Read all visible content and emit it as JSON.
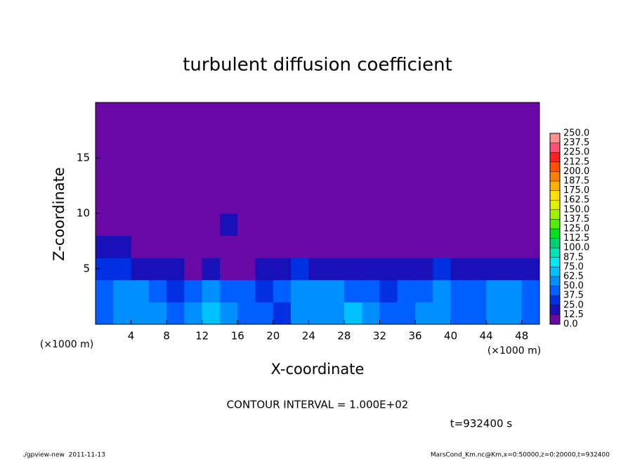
{
  "chart_data": {
    "type": "heatmap",
    "title": "turbulent diffusion coefficient",
    "x_label": "X-coordinate",
    "y_label": "Z-coordinate",
    "x_unit": "(×1000 m)",
    "xlim": [
      0,
      50
    ],
    "xticks": [
      4,
      8,
      12,
      16,
      20,
      24,
      28,
      32,
      36,
      40,
      44,
      48
    ],
    "ylim": [
      0,
      20
    ],
    "yticks": [
      5,
      10,
      15
    ],
    "x_edges": [
      0,
      2,
      4,
      6,
      8,
      10,
      12,
      14,
      16,
      18,
      20,
      22,
      24,
      26,
      28,
      30,
      32,
      34,
      36,
      38,
      40,
      42,
      44,
      46,
      48,
      50
    ],
    "y_edges": [
      0,
      2,
      4,
      6,
      8,
      10,
      12,
      14,
      16,
      18,
      20
    ],
    "field": [
      [
        45,
        55,
        60,
        50,
        40,
        55,
        65,
        50,
        45,
        40,
        35,
        50,
        55,
        60,
        65,
        55,
        45,
        40,
        50,
        55,
        45,
        40,
        50,
        60,
        45
      ],
      [
        40,
        50,
        55,
        45,
        35,
        40,
        50,
        45,
        40,
        30,
        40,
        55,
        60,
        50,
        45,
        40,
        35,
        40,
        45,
        50,
        40,
        45,
        55,
        50,
        40
      ],
      [
        30,
        25,
        20,
        15,
        20,
        10,
        15,
        10,
        12,
        15,
        20,
        25,
        20,
        15,
        20,
        18,
        20,
        15,
        20,
        25,
        20,
        18,
        20,
        15,
        20
      ],
      [
        20,
        15,
        10,
        0,
        0,
        0,
        0,
        0,
        0,
        0,
        0,
        10,
        0,
        0,
        0,
        0,
        0,
        0,
        0,
        0,
        0,
        0,
        0,
        0,
        0
      ],
      [
        0,
        0,
        0,
        0,
        0,
        0,
        0,
        15,
        0,
        0,
        0,
        0,
        0,
        0,
        0,
        0,
        0,
        10,
        0,
        0,
        0,
        0,
        0,
        0,
        0
      ],
      [
        0,
        0,
        0,
        0,
        0,
        0,
        0,
        0,
        0,
        0,
        0,
        0,
        0,
        0,
        0,
        0,
        0,
        0,
        0,
        0,
        0,
        0,
        0,
        0,
        0
      ],
      [
        0,
        0,
        0,
        0,
        0,
        0,
        0,
        0,
        0,
        0,
        0,
        0,
        0,
        0,
        0,
        0,
        0,
        0,
        0,
        0,
        0,
        0,
        0,
        0,
        0
      ],
      [
        0,
        0,
        0,
        0,
        0,
        0,
        0,
        0,
        0,
        0,
        0,
        0,
        0,
        0,
        0,
        0,
        0,
        0,
        0,
        0,
        0,
        0,
        0,
        0,
        0
      ],
      [
        0,
        0,
        0,
        0,
        0,
        0,
        0,
        0,
        0,
        0,
        0,
        0,
        0,
        0,
        0,
        0,
        0,
        0,
        0,
        0,
        0,
        0,
        0,
        0,
        0
      ],
      [
        0,
        0,
        0,
        0,
        0,
        0,
        0,
        0,
        0,
        0,
        0,
        0,
        0,
        0,
        0,
        0,
        0,
        0,
        0,
        0,
        0,
        0,
        0,
        0,
        0
      ]
    ],
    "levels": [
      {
        "value": 0,
        "label": "0.0"
      },
      {
        "value": 12.5,
        "label": "12.5"
      },
      {
        "value": 25,
        "label": "25.0"
      },
      {
        "value": 37.5,
        "label": "37.5"
      },
      {
        "value": 50,
        "label": "50.0"
      },
      {
        "value": 62.5,
        "label": "62.5"
      },
      {
        "value": 75,
        "label": "75.0"
      },
      {
        "value": 87.5,
        "label": "87.5"
      },
      {
        "value": 100,
        "label": "100.0"
      },
      {
        "value": 112.5,
        "label": "112.5"
      },
      {
        "value": 125,
        "label": "125.0"
      },
      {
        "value": 137.5,
        "label": "137.5"
      },
      {
        "value": 150,
        "label": "150.0"
      },
      {
        "value": 162.5,
        "label": "162.5"
      },
      {
        "value": 175,
        "label": "175.0"
      },
      {
        "value": 187.5,
        "label": "187.5"
      },
      {
        "value": 200,
        "label": "200.0"
      },
      {
        "value": 212.5,
        "label": "212.5"
      },
      {
        "value": 225,
        "label": "225.0"
      },
      {
        "value": 237.5,
        "label": "237.5"
      },
      {
        "value": 250,
        "label": "250.0"
      }
    ],
    "colors": [
      "#6a0aa6",
      "#1a10b8",
      "#0030e0",
      "#0060ff",
      "#0090ff",
      "#00c0ff",
      "#00e8f0",
      "#00e0b0",
      "#00d070",
      "#00e020",
      "#50f000",
      "#a0f000",
      "#e0f000",
      "#ffe000",
      "#ffb000",
      "#ff8000",
      "#ff5000",
      "#ff2020",
      "#ff5070",
      "#ff9090"
    ],
    "contour_interval": "CONTOUR INTERVAL = 1.000E+02",
    "time_label": "t=932400 s",
    "footer_left": "./gpview-new  2011-11-13",
    "footer_right": "MarsCond_Km.nc@Km,x=0:50000,z=0:20000,t=932400"
  }
}
